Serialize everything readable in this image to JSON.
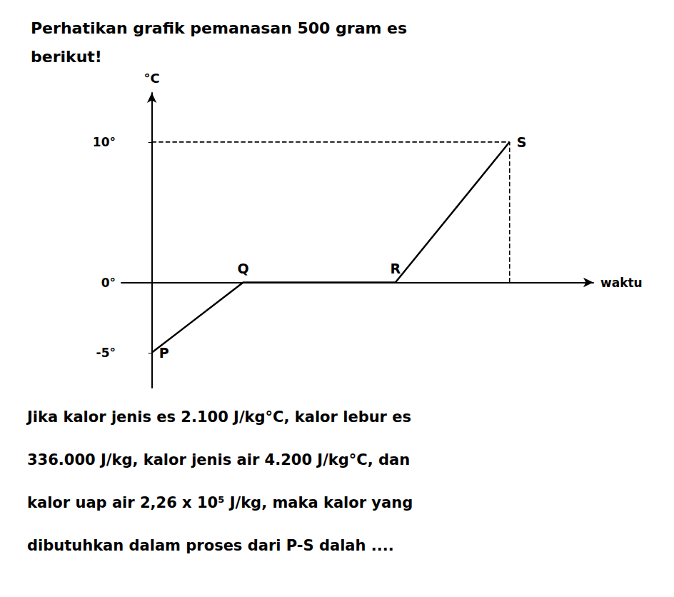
{
  "chart_data": {
    "type": "line",
    "title": "Perhatikan grafik pemanasan 500 gram es\nberikut!",
    "x_label": "waktu",
    "y_label": "°C",
    "x": [
      0.0,
      1.2,
      3.2,
      4.7
    ],
    "values": [
      -5,
      0,
      0,
      10
    ],
    "point_labels": [
      "P",
      "Q",
      "R",
      "S"
    ],
    "color": "#000000",
    "line_style": "solid",
    "reference_lines": [
      {
        "x": [
          0.0,
          4.7
        ],
        "y": [
          10,
          10
        ],
        "color": "#000000",
        "line_style": "dashed"
      },
      {
        "x": [
          4.7,
          4.7
        ],
        "y": [
          0,
          10
        ],
        "color": "#000000",
        "line_style": "dashed"
      }
    ],
    "xlim": [
      -0.4,
      5.8
    ],
    "xticks": [],
    "ylim": [
      -7.5,
      13.5
    ],
    "yticks": [
      {
        "value": -5,
        "label": "-5°"
      },
      {
        "value": 0,
        "label": "0°"
      },
      {
        "value": 10,
        "label": "10°"
      }
    ],
    "tick_labels": "y",
    "grid": false,
    "footnote": [
      "Jika kalor jenis es 2.100 J/kg°C, kalor lebur es",
      "336.000 J/kg, kalor jenis air 4.200 J/kg°C, dan",
      "kalor uap air 2,26 x 10⁵ J/kg, maka kalor yang",
      "dibutuhkan dalam proses dari P-S dalah ...."
    ]
  }
}
